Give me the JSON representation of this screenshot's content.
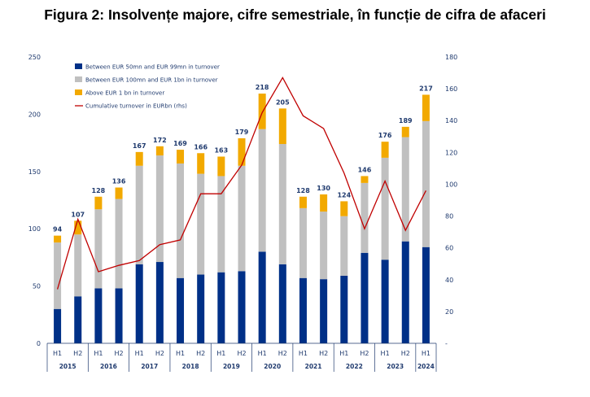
{
  "title": "Figura 2: Insolvențe majore, cifre semestriale, în funcție de cifra de afaceri",
  "chart_data": {
    "type": "bar",
    "stacked": true,
    "categories": [
      "H1",
      "H2",
      "H1",
      "H2",
      "H1",
      "H2",
      "H1",
      "H2",
      "H1",
      "H2",
      "H1",
      "H2",
      "H1",
      "H2",
      "H1",
      "H2",
      "H1",
      "H2",
      "H1"
    ],
    "years": [
      "2015",
      "2016",
      "2017",
      "2018",
      "2019",
      "2020",
      "2021",
      "2022",
      "2023",
      "2024"
    ],
    "year_spans": [
      2,
      2,
      2,
      2,
      2,
      2,
      2,
      2,
      2,
      1
    ],
    "series": [
      {
        "name": "Between EUR 50mn and EUR 99mn in turnover",
        "color": "#003087",
        "values": [
          30,
          41,
          48,
          48,
          69,
          71,
          57,
          60,
          62,
          63,
          80,
          69,
          57,
          56,
          59,
          79,
          73,
          89,
          84
        ]
      },
      {
        "name": "Between EUR 100mn and EUR 1bn in turnover",
        "color": "#c0c0c0",
        "values": [
          58,
          54,
          69,
          78,
          86,
          93,
          100,
          88,
          84,
          92,
          107,
          105,
          61,
          59,
          52,
          61,
          89,
          91,
          110
        ]
      },
      {
        "name": "Above EUR 1 bn in turnover",
        "color": "#f2a900",
        "values": [
          6,
          12,
          11,
          10,
          12,
          8,
          12,
          18,
          17,
          24,
          31,
          31,
          10,
          15,
          13,
          6,
          14,
          9,
          23
        ]
      }
    ],
    "totals": [
      94,
      107,
      128,
      136,
      167,
      172,
      169,
      166,
      163,
      179,
      218,
      205,
      128,
      130,
      124,
      146,
      176,
      189,
      217
    ],
    "line": {
      "name": "Cumulative turnover in EURbn (rhs)",
      "color": "#c00000",
      "axis": "right",
      "values": [
        34,
        78,
        45,
        49,
        52,
        62,
        65,
        94,
        94,
        112,
        145,
        167,
        143,
        135,
        107,
        72,
        102,
        71,
        96
      ]
    },
    "y_left": {
      "min": 0,
      "max": 250,
      "ticks": [
        "0",
        "50",
        "100",
        "150",
        "200",
        "250"
      ]
    },
    "y_right": {
      "min": 0,
      "max": 180,
      "ticks": [
        "-",
        "20",
        "40",
        "60",
        "80",
        "100",
        "120",
        "140",
        "160",
        "180"
      ]
    },
    "legend_position": "top-left",
    "grid": false
  }
}
